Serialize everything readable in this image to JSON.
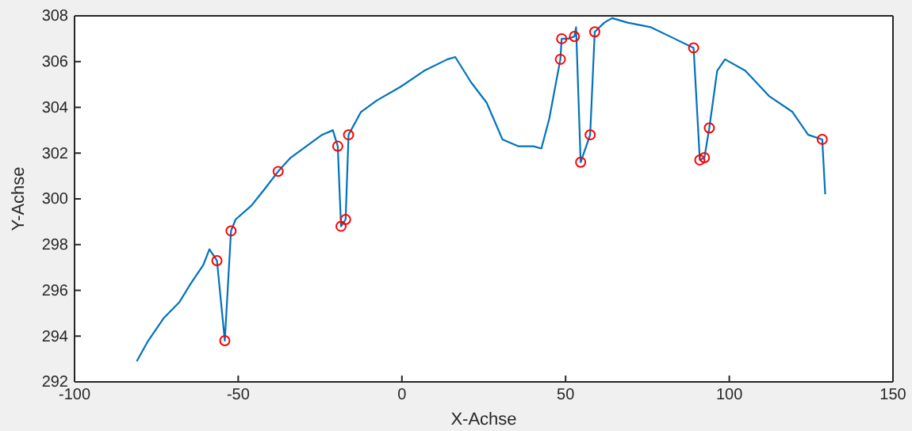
{
  "chart_data": {
    "type": "line",
    "xlabel": "X-Achse",
    "ylabel": "Y-Achse",
    "xlim": [
      -100,
      150
    ],
    "ylim": [
      292,
      308
    ],
    "xticks": [
      -100,
      -50,
      0,
      50,
      100,
      150
    ],
    "yticks": [
      292,
      294,
      296,
      298,
      300,
      302,
      304,
      306,
      308
    ],
    "grid": false,
    "series": [
      {
        "color": "#0072bd",
        "marker": "none",
        "x": [
          -81,
          -77.5,
          -72.7,
          -67.9,
          -64.5,
          -60.7,
          -58.8,
          -56.5,
          -54.1,
          -52.2,
          -50.8,
          -46,
          -42.1,
          -37.8,
          -34,
          -29.2,
          -24.4,
          -21.1,
          -19.6,
          -18.6,
          -17.2,
          -16.3,
          -12.5,
          -7.7,
          -0.4,
          6.8,
          13.9,
          16.3,
          21.1,
          25.9,
          30.7,
          35.5,
          40.2,
          42.6,
          45,
          48.4,
          48.8,
          50.8,
          52.7,
          53.2,
          54.6,
          57.5,
          58.9,
          61.8,
          64.2,
          69,
          76.1,
          83.3,
          89.1,
          91,
          92.4,
          93.9,
          96.3,
          98.7,
          104.9,
          112.1,
          119.3,
          124.1,
          128.4,
          129.3
        ],
        "values": [
          292.9,
          293.8,
          294.8,
          295.5,
          296.3,
          297.1,
          297.8,
          297.3,
          293.8,
          298.6,
          299.1,
          299.7,
          300.4,
          301.2,
          301.8,
          302.3,
          302.8,
          303,
          302.3,
          298.8,
          299.1,
          302.8,
          303.8,
          304.3,
          304.9,
          305.6,
          306.1,
          306.2,
          305.1,
          304.2,
          302.6,
          302.3,
          302.3,
          302.2,
          303.5,
          306.1,
          307,
          307,
          307.1,
          307.5,
          301.6,
          302.8,
          307.3,
          307.7,
          307.9,
          307.7,
          307.5,
          307,
          306.6,
          301.7,
          301.8,
          303.1,
          305.6,
          306.1,
          305.6,
          304.5,
          303.8,
          302.8,
          302.6,
          300.2
        ]
      },
      {
        "type": "scatter",
        "color": "#ff0000",
        "marker": "circle",
        "x": [
          -56.5,
          -54.1,
          -52.2,
          -37.8,
          -19.6,
          -18.6,
          -17.2,
          -16.3,
          48.4,
          48.8,
          52.7,
          54.6,
          57.5,
          58.9,
          89.1,
          91,
          92.4,
          93.9,
          128.4
        ],
        "values": [
          297.3,
          293.8,
          298.6,
          301.2,
          302.3,
          298.8,
          299.1,
          302.8,
          306.1,
          307,
          307.1,
          301.6,
          302.8,
          307.3,
          306.6,
          301.7,
          301.8,
          303.1,
          302.6
        ]
      }
    ]
  }
}
